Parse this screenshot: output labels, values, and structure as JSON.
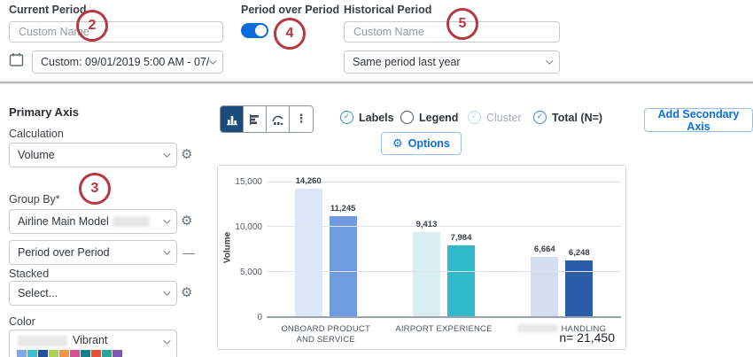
{
  "icons": {
    "gear": "⚙",
    "ellipsis": "⋮",
    "remove": "—",
    "check": "✓"
  },
  "colors": {
    "accent": "#0b6cde",
    "selected_chart_button": "#1b4d7c",
    "annotation": "#b5373f"
  },
  "annotations": {
    "two": "2",
    "three": "3",
    "four": "4",
    "five": "5"
  },
  "header": {
    "current": {
      "label": "Current Period",
      "name_placeholder": "Custom Name",
      "range_value": "Custom: 09/01/2019 5:00 AM - 07/0..."
    },
    "period_over_period": {
      "label": "Period over Period",
      "toggle_on": true
    },
    "historical": {
      "label": "Historical Period",
      "name_placeholder": "Custom Name",
      "preset_value": "Same period last year"
    }
  },
  "sidebar": {
    "title": "Primary Axis",
    "calculation_label": "Calculation",
    "calculation_value": "Volume",
    "group_by_label": "Group By*",
    "group_by_value": "Airline Main Model",
    "comparison_value": "Period over Period",
    "stacked_label": "Stacked",
    "stacked_value": "Select...",
    "color_label": "Color",
    "color_value": "Vibrant",
    "palette": [
      "#7da7e8",
      "#3bbfce",
      "#1f4e9c",
      "#aad155",
      "#f59540",
      "#d94f93",
      "#14808a",
      "#e8503a",
      "#27a596",
      "#7c58b0"
    ]
  },
  "toolbar": {
    "options_label": "Options",
    "add_secondary_label": "Add Secondary Axis",
    "toggles": [
      {
        "label": "Labels",
        "state": "checked"
      },
      {
        "label": "Legend",
        "state": "unchecked"
      },
      {
        "label": "Cluster",
        "state": "checked-disabled"
      },
      {
        "label": "Total (N=)",
        "state": "checked"
      }
    ]
  },
  "chart_data": {
    "type": "bar",
    "title": "",
    "ylabel": "Volume",
    "ymax": 15000,
    "grid": true,
    "legend": "off",
    "yticks": [
      {
        "value": 0,
        "label": "0"
      },
      {
        "value": 5000,
        "label": "5,000"
      },
      {
        "value": 10000,
        "label": "10,000"
      },
      {
        "value": 15000,
        "label": "15,000"
      }
    ],
    "categories": [
      "ONBOARD PRODUCT AND SERVICE",
      "AIRPORT EXPERIENCE",
      "HANDLING"
    ],
    "redacted_prefix_index": 2,
    "series": [
      {
        "values": [
          14260,
          9413,
          6664
        ],
        "labels": [
          "14,260",
          "9,413",
          "6,664"
        ],
        "colors": [
          "#dbe6f8",
          "#d9eef1",
          "#d3dfef"
        ]
      },
      {
        "values": [
          11245,
          7984,
          6248
        ],
        "labels": [
          "11,245",
          "7,984",
          "6,248"
        ],
        "colors": [
          "#6f9ce0",
          "#30b9c9",
          "#2a5ca8"
        ]
      }
    ],
    "n_label": "n= 21,450"
  }
}
